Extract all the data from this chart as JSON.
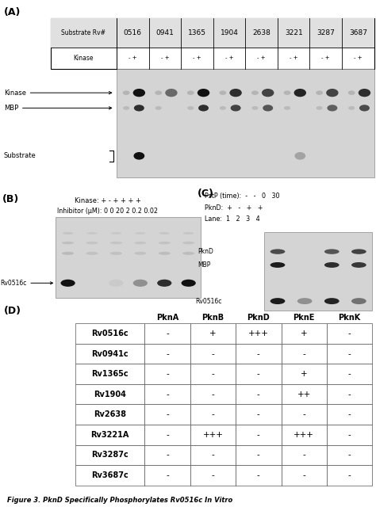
{
  "panel_A_label": "(A)",
  "panel_B_label": "(B)",
  "panel_C_label": "(C)",
  "panel_D_label": "(D)",
  "table_A_row1": [
    "Substrate Rv#",
    "0516",
    "0941",
    "1365",
    "1904",
    "2638",
    "3221",
    "3287",
    "3687"
  ],
  "table_A_row2": [
    "Kinase",
    "- +",
    "- +",
    "- +",
    "- +",
    "- +",
    "- +",
    "- +",
    "- +"
  ],
  "panel_D_col_headers": [
    "PknA",
    "PknB",
    "PknD",
    "PknE",
    "PknK"
  ],
  "panel_D_row_headers": [
    "Rv0516c",
    "Rv0941c",
    "Rv1365c",
    "Rv1904",
    "Rv2638",
    "Rv3221A",
    "Rv3287c",
    "Rv3687c"
  ],
  "panel_D_data": [
    [
      "-",
      "+",
      "+++",
      "+",
      "-"
    ],
    [
      "-",
      "-",
      "-",
      "-",
      "-"
    ],
    [
      "-",
      "-",
      "-",
      "+",
      "-"
    ],
    [
      "-",
      "-",
      "-",
      "++",
      "-"
    ],
    [
      "-",
      "-",
      "-",
      "-",
      "-"
    ],
    [
      "-",
      "+++",
      "-",
      "+++",
      "-"
    ],
    [
      "-",
      "-",
      "-",
      "-",
      "-"
    ],
    [
      "-",
      "-",
      "-",
      "-",
      "-"
    ]
  ],
  "figure_caption": "Figure 3. PknD Specifically Phosphorylates Rv0516c In Vitro",
  "bg_color": "#ffffff",
  "gel_bg": "#d4d4d4",
  "band_dark": "#111111",
  "band_mid": "#555555",
  "band_light": "#999999"
}
